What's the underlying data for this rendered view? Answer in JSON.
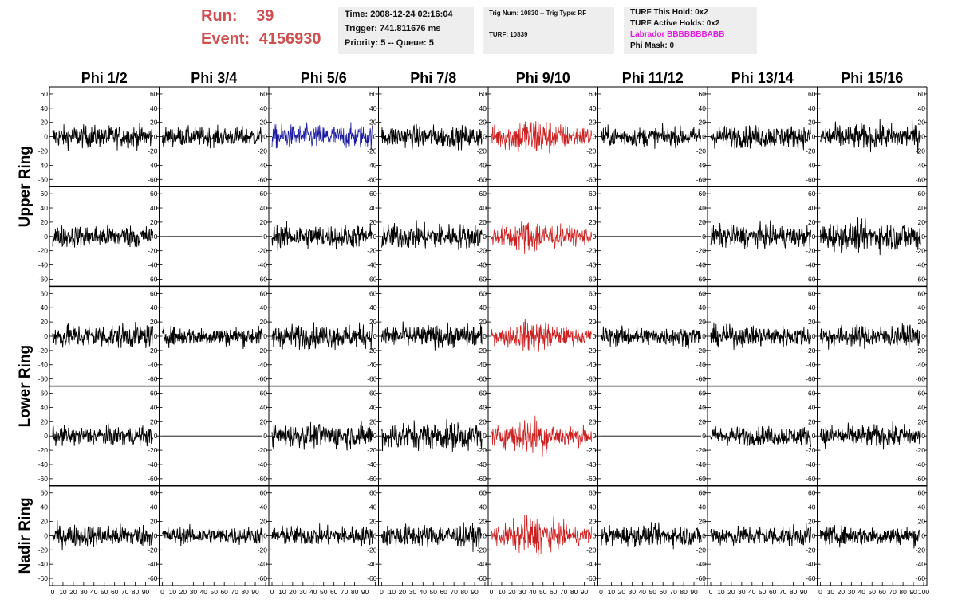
{
  "header": {
    "run_label": "Run:",
    "run_value": "39",
    "event_label": "Event:",
    "event_value": "4156930",
    "time_text": "Time: 2008-12-24 02:16:04",
    "trigger_text": "Trigger: 741.811676 ms",
    "priority_text": "Priority: 5 -- Queue: 5",
    "trig_num_text": "Trig Num: 10830 -- Trig Type: RF",
    "turf_text": "TURF: 10839",
    "turf_hold_text": "TURF This Hold: 0x2",
    "turf_active_text": "TURF Active Holds: 0x2",
    "labrador_text": "Labrador BBBBBBBABB",
    "phi_mask_text": "Phi Mask: 0"
  },
  "colors": {
    "run_event": "#d05050",
    "labrador": "#e020e0",
    "trace_default": "#000000",
    "trace_blue": "#1a1aa0",
    "trace_red": "#cc2020",
    "info_bg": "#eeeeee"
  },
  "chart_data": {
    "type": "line",
    "description_rows": [
      "Upper Ring",
      "Upper Ring",
      "Lower Ring",
      "Lower Ring",
      "Nadir Ring"
    ],
    "columns": [
      "Phi 1/2",
      "Phi 3/4",
      "Phi 5/6",
      "Phi 7/8",
      "Phi 9/10",
      "Phi 11/12",
      "Phi 13/14",
      "Phi 15/16"
    ],
    "row_labels": [
      {
        "label": "Upper Ring",
        "rows": [
          0,
          1
        ]
      },
      {
        "label": "Lower Ring",
        "rows": [
          2,
          3
        ]
      },
      {
        "label": "Nadir Ring",
        "rows": [
          4
        ]
      }
    ],
    "xlim": [
      0,
      100
    ],
    "ylim": [
      -70,
      70
    ],
    "y_ticks": [
      -60,
      -40,
      -20,
      0,
      20,
      40,
      60
    ],
    "x_tick_labels": [
      "0",
      "10",
      "20",
      "30",
      "40",
      "50",
      "60",
      "70",
      "80",
      "90",
      "100"
    ],
    "x_data_range": [
      0,
      97
    ],
    "samples_per_trace": 260,
    "traces": [
      [
        {
          "color": "default",
          "amplitude": 14
        },
        {
          "color": "default",
          "amplitude": 12
        },
        {
          "color": "blue",
          "amplitude": 15
        },
        {
          "color": "default",
          "amplitude": 14
        },
        {
          "color": "red",
          "amplitude": 24
        },
        {
          "color": "default",
          "amplitude": 12
        },
        {
          "color": "default",
          "amplitude": 14
        },
        {
          "color": "default",
          "amplitude": 16
        }
      ],
      [
        {
          "color": "default",
          "amplitude": 14
        },
        {
          "color": "default",
          "amplitude": 0
        },
        {
          "color": "default",
          "amplitude": 15
        },
        {
          "color": "default",
          "amplitude": 16
        },
        {
          "color": "red",
          "amplitude": 20
        },
        {
          "color": "default",
          "amplitude": 0
        },
        {
          "color": "default",
          "amplitude": 14
        },
        {
          "color": "default",
          "amplitude": 18
        }
      ],
      [
        {
          "color": "default",
          "amplitude": 15
        },
        {
          "color": "default",
          "amplitude": 12
        },
        {
          "color": "default",
          "amplitude": 15
        },
        {
          "color": "default",
          "amplitude": 14
        },
        {
          "color": "red",
          "amplitude": 18
        },
        {
          "color": "default",
          "amplitude": 12
        },
        {
          "color": "default",
          "amplitude": 13
        },
        {
          "color": "default",
          "amplitude": 14
        }
      ],
      [
        {
          "color": "default",
          "amplitude": 12
        },
        {
          "color": "default",
          "amplitude": 0
        },
        {
          "color": "default",
          "amplitude": 15
        },
        {
          "color": "default",
          "amplitude": 18
        },
        {
          "color": "red",
          "amplitude": 22
        },
        {
          "color": "default",
          "amplitude": 0
        },
        {
          "color": "default",
          "amplitude": 12
        },
        {
          "color": "default",
          "amplitude": 14
        }
      ],
      [
        {
          "color": "default",
          "amplitude": 14
        },
        {
          "color": "default",
          "amplitude": 11
        },
        {
          "color": "default",
          "amplitude": 12
        },
        {
          "color": "default",
          "amplitude": 14
        },
        {
          "color": "red",
          "amplitude": 22
        },
        {
          "color": "default",
          "amplitude": 13
        },
        {
          "color": "default",
          "amplitude": 13
        },
        {
          "color": "default",
          "amplitude": 12
        }
      ]
    ]
  }
}
